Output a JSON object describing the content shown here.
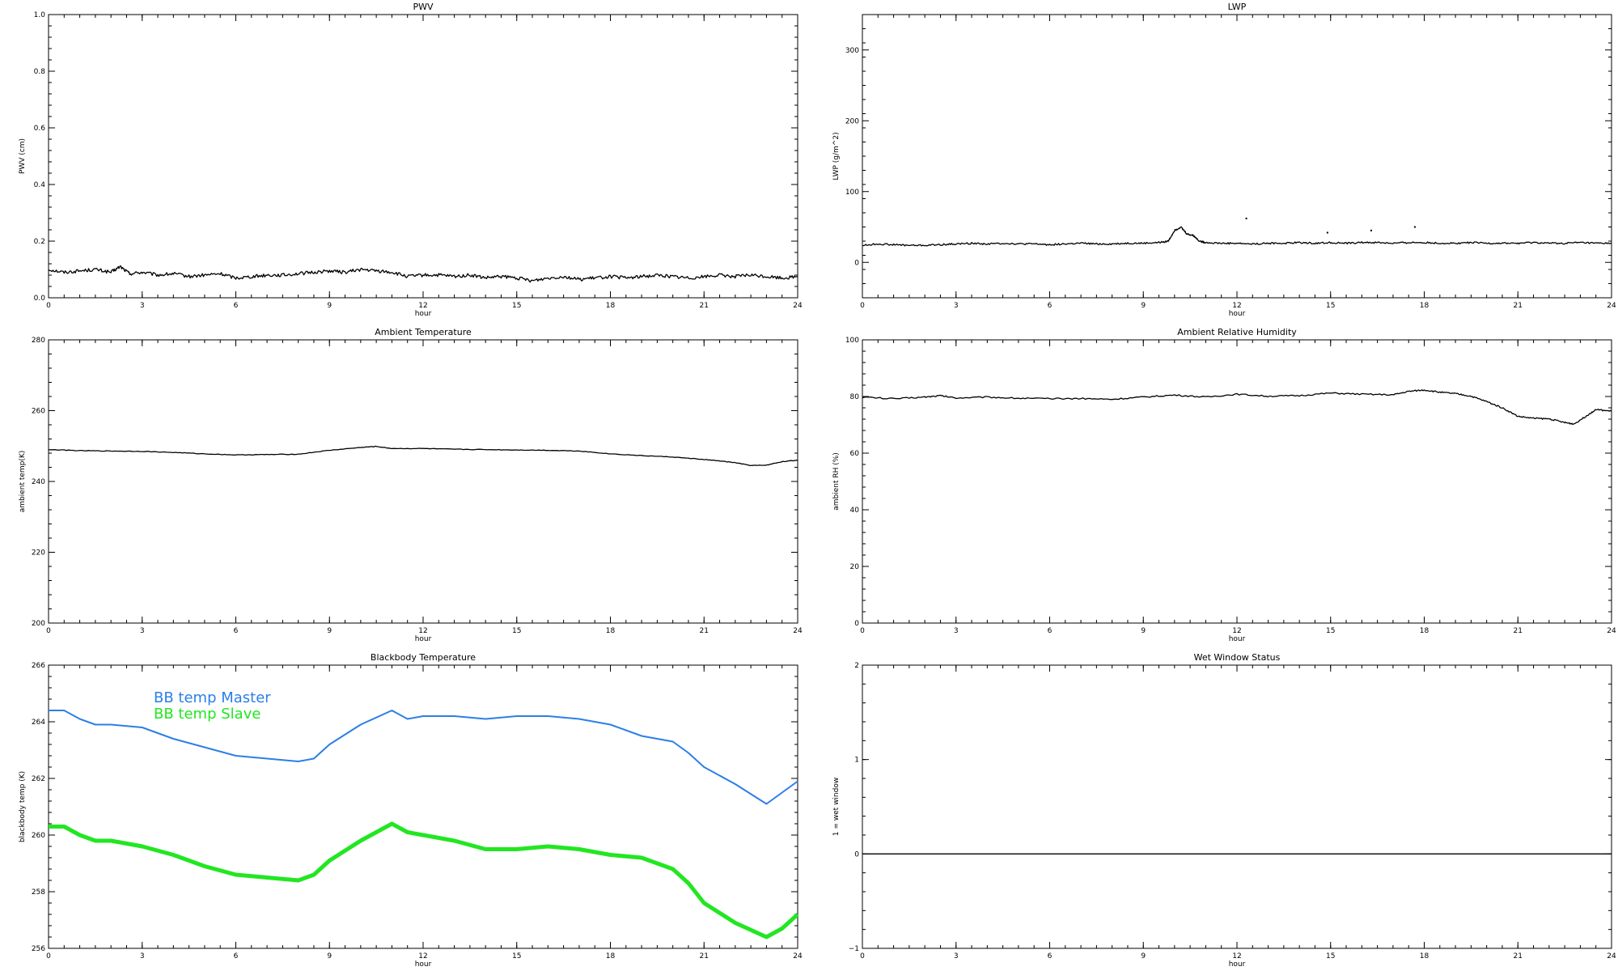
{
  "figure": {
    "background": "#ffffff"
  },
  "chart_data": [
    {
      "id": "pwv",
      "type": "line",
      "title": "PWV",
      "xlabel": "hour",
      "ylabel": "PWV (cm)",
      "xlim": [
        0,
        24
      ],
      "ylim": [
        0,
        1.0
      ],
      "xticks": [
        "0",
        "3",
        "6",
        "9",
        "12",
        "15",
        "18",
        "21",
        "24"
      ],
      "yticks": [
        "0.0",
        "0.2",
        "0.4",
        "0.6",
        "0.8",
        "1.0"
      ],
      "grid": false,
      "series": [
        {
          "color": "#000000",
          "noise": 0.006,
          "x": [
            0,
            0.5,
            1,
            1.5,
            2,
            2.3,
            2.6,
            3,
            3.5,
            4,
            4.5,
            5,
            5.5,
            6,
            6.5,
            7,
            7.5,
            8,
            8.5,
            9,
            9.5,
            10,
            10.5,
            11,
            11.5,
            12,
            12.5,
            13,
            13.5,
            14,
            14.5,
            15,
            15.5,
            16,
            16.5,
            17,
            17.5,
            18,
            18.5,
            19,
            19.5,
            20,
            20.5,
            21,
            21.5,
            22,
            22.5,
            23,
            23.5,
            24
          ],
          "y": [
            0.1,
            0.09,
            0.095,
            0.1,
            0.09,
            0.11,
            0.085,
            0.09,
            0.08,
            0.085,
            0.075,
            0.08,
            0.085,
            0.07,
            0.075,
            0.08,
            0.08,
            0.085,
            0.09,
            0.095,
            0.09,
            0.1,
            0.095,
            0.09,
            0.075,
            0.08,
            0.08,
            0.075,
            0.08,
            0.07,
            0.075,
            0.07,
            0.06,
            0.07,
            0.075,
            0.065,
            0.07,
            0.075,
            0.07,
            0.075,
            0.08,
            0.075,
            0.07,
            0.075,
            0.08,
            0.075,
            0.08,
            0.075,
            0.07,
            0.075
          ]
        }
      ]
    },
    {
      "id": "lwp",
      "type": "line",
      "title": "LWP",
      "xlabel": "hour",
      "ylabel": "LWP (g/m^2)",
      "xlim": [
        0,
        24
      ],
      "ylim": [
        -50,
        350
      ],
      "xticks": [
        "0",
        "3",
        "6",
        "9",
        "12",
        "15",
        "18",
        "21",
        "24"
      ],
      "yticks": [
        "0",
        "100",
        "200",
        "300"
      ],
      "ytick_values": [
        0,
        100,
        200,
        300
      ],
      "grid": false,
      "series": [
        {
          "color": "#000000",
          "noise": 1.2,
          "x": [
            0,
            0.5,
            1,
            1.5,
            2,
            2.5,
            3,
            3.5,
            4,
            4.5,
            5,
            5.5,
            6,
            6.5,
            7,
            7.5,
            8,
            8.5,
            9,
            9.5,
            9.8,
            10,
            10.2,
            10.4,
            10.6,
            10.8,
            11,
            11.5,
            12,
            12.5,
            13,
            13.5,
            14,
            14.5,
            15,
            15.5,
            16,
            16.5,
            17,
            17.5,
            18,
            18.5,
            19,
            19.5,
            20,
            20.5,
            21,
            21.5,
            22,
            22.5,
            23,
            23.5,
            24
          ],
          "y": [
            24,
            26,
            25,
            24,
            24,
            25,
            26,
            27,
            26,
            27,
            26,
            26,
            25,
            26,
            27,
            26,
            26,
            27,
            27,
            28,
            30,
            45,
            50,
            40,
            38,
            30,
            28,
            27,
            27,
            26,
            27,
            27,
            28,
            27,
            28,
            27,
            28,
            28,
            27,
            28,
            28,
            27,
            27,
            28,
            27,
            27,
            27,
            28,
            27,
            27,
            28,
            27,
            27
          ]
        },
        {
          "color": "#000000",
          "style": "points",
          "x": [
            12.3,
            14.9,
            16.3,
            17.7
          ],
          "y": [
            62,
            42,
            45,
            50
          ]
        }
      ]
    },
    {
      "id": "ambient-temperature",
      "type": "line",
      "title": "Ambient Temperature",
      "xlabel": "hour",
      "ylabel": "ambient temp(K)",
      "xlim": [
        0,
        24
      ],
      "ylim": [
        200,
        280
      ],
      "xticks": [
        "0",
        "3",
        "6",
        "9",
        "12",
        "15",
        "18",
        "21",
        "24"
      ],
      "yticks": [
        "200",
        "220",
        "240",
        "260",
        "280"
      ],
      "ytick_values": [
        200,
        220,
        240,
        260,
        280
      ],
      "grid": false,
      "series": [
        {
          "color": "#000000",
          "noise": 0.08,
          "x": [
            0,
            1,
            2,
            3,
            4,
            5,
            6,
            7,
            8,
            9,
            10,
            10.5,
            11,
            12,
            13,
            14,
            15,
            16,
            17,
            18,
            19,
            20,
            21,
            21.5,
            22,
            22.5,
            23,
            23.5,
            24
          ],
          "y": [
            249,
            248.7,
            248.6,
            248.5,
            248.2,
            247.8,
            247.5,
            247.6,
            247.7,
            248.8,
            249.6,
            249.9,
            249.3,
            249.3,
            249.1,
            249,
            248.9,
            248.8,
            248.6,
            247.8,
            247.3,
            246.9,
            246.2,
            245.8,
            245.3,
            244.5,
            244.6,
            245.6,
            246
          ]
        }
      ]
    },
    {
      "id": "ambient-relative-humidity",
      "type": "line",
      "title": "Ambient Relative Humidity",
      "xlabel": "hour",
      "ylabel": "ambient RH (%)",
      "xlim": [
        0,
        24
      ],
      "ylim": [
        0,
        100
      ],
      "xticks": [
        "0",
        "3",
        "6",
        "9",
        "12",
        "15",
        "18",
        "21",
        "24"
      ],
      "yticks": [
        "0",
        "20",
        "40",
        "60",
        "80",
        "100"
      ],
      "ytick_values": [
        0,
        20,
        40,
        60,
        80,
        100
      ],
      "grid": false,
      "series": [
        {
          "color": "#000000",
          "noise": 0.25,
          "x": [
            0,
            1,
            2,
            2.5,
            3,
            4,
            5,
            6,
            7,
            8,
            9,
            10,
            11,
            12,
            13,
            14,
            15,
            16,
            17,
            17.5,
            18,
            18.5,
            19,
            19.5,
            20,
            20.5,
            21,
            21.5,
            22,
            22.5,
            22.8,
            23.2,
            23.5,
            24
          ],
          "y": [
            79.8,
            79.2,
            79.8,
            80.3,
            79.5,
            79.8,
            79.4,
            79.2,
            79.3,
            79,
            79.8,
            80.5,
            79.8,
            80.8,
            80.1,
            80.3,
            81.2,
            80.8,
            80.6,
            81.8,
            82.3,
            81.5,
            81,
            80.1,
            78.2,
            76,
            73,
            72.3,
            72.1,
            70.8,
            70.3,
            73.2,
            75.4,
            74.8
          ]
        }
      ]
    },
    {
      "id": "blackbody-temperature",
      "type": "line",
      "title": "Blackbody Temperature",
      "xlabel": "hour",
      "ylabel": "blackbody temp (K)",
      "xlim": [
        0,
        24
      ],
      "ylim": [
        256,
        266
      ],
      "xticks": [
        "0",
        "3",
        "6",
        "9",
        "12",
        "15",
        "18",
        "21",
        "24"
      ],
      "yticks": [
        "256",
        "258",
        "260",
        "262",
        "264",
        "266"
      ],
      "ytick_values": [
        256,
        258,
        260,
        262,
        264,
        266
      ],
      "grid": false,
      "legend": {
        "placement": "top-left",
        "entries": [
          "BB temp Master",
          "BB temp Slave"
        ]
      },
      "series": [
        {
          "name": "BB temp Master",
          "color": "#2b7fe6",
          "width": 2,
          "x": [
            0,
            0.5,
            1,
            1.5,
            2,
            3,
            4,
            5,
            6,
            7,
            8,
            8.5,
            9,
            10,
            11,
            11.5,
            12,
            13,
            14,
            15,
            16,
            17,
            18,
            19,
            20,
            20.5,
            21,
            22,
            23,
            23.5,
            24
          ],
          "y": [
            264.4,
            264.4,
            264.1,
            263.9,
            263.9,
            263.8,
            263.4,
            263.1,
            262.8,
            262.7,
            262.6,
            262.7,
            263.2,
            263.9,
            264.4,
            264.1,
            264.2,
            264.2,
            264.1,
            264.2,
            264.2,
            264.1,
            263.9,
            263.5,
            263.3,
            262.9,
            262.4,
            261.8,
            261.1,
            261.5,
            261.9
          ]
        },
        {
          "name": "BB temp Slave",
          "color": "#22e622",
          "width": 5,
          "x": [
            0,
            0.5,
            1,
            1.5,
            2,
            3,
            4,
            5,
            6,
            7,
            8,
            8.5,
            9,
            10,
            11,
            11.5,
            12,
            13,
            14,
            15,
            16,
            17,
            18,
            19,
            20,
            20.5,
            21,
            22,
            23,
            23.5,
            24
          ],
          "y": [
            260.3,
            260.3,
            260,
            259.8,
            259.8,
            259.6,
            259.3,
            258.9,
            258.6,
            258.5,
            258.4,
            258.6,
            259.1,
            259.8,
            260.4,
            260.1,
            260,
            259.8,
            259.5,
            259.5,
            259.6,
            259.5,
            259.3,
            259.2,
            258.8,
            258.3,
            257.6,
            256.9,
            256.4,
            256.7,
            257.2
          ]
        }
      ]
    },
    {
      "id": "wet-window-status",
      "type": "line",
      "title": "Wet Window Status",
      "xlabel": "hour",
      "ylabel": "1 = wet window",
      "xlim": [
        0,
        24
      ],
      "ylim": [
        -1,
        2
      ],
      "xticks": [
        "0",
        "3",
        "6",
        "9",
        "12",
        "15",
        "18",
        "21",
        "24"
      ],
      "yticks": [
        "−1",
        "0",
        "1",
        "2"
      ],
      "ytick_values": [
        -1,
        0,
        1,
        2
      ],
      "grid": false,
      "series": [
        {
          "color": "#000000",
          "x": [
            0,
            24
          ],
          "y": [
            0,
            0
          ]
        }
      ]
    }
  ]
}
